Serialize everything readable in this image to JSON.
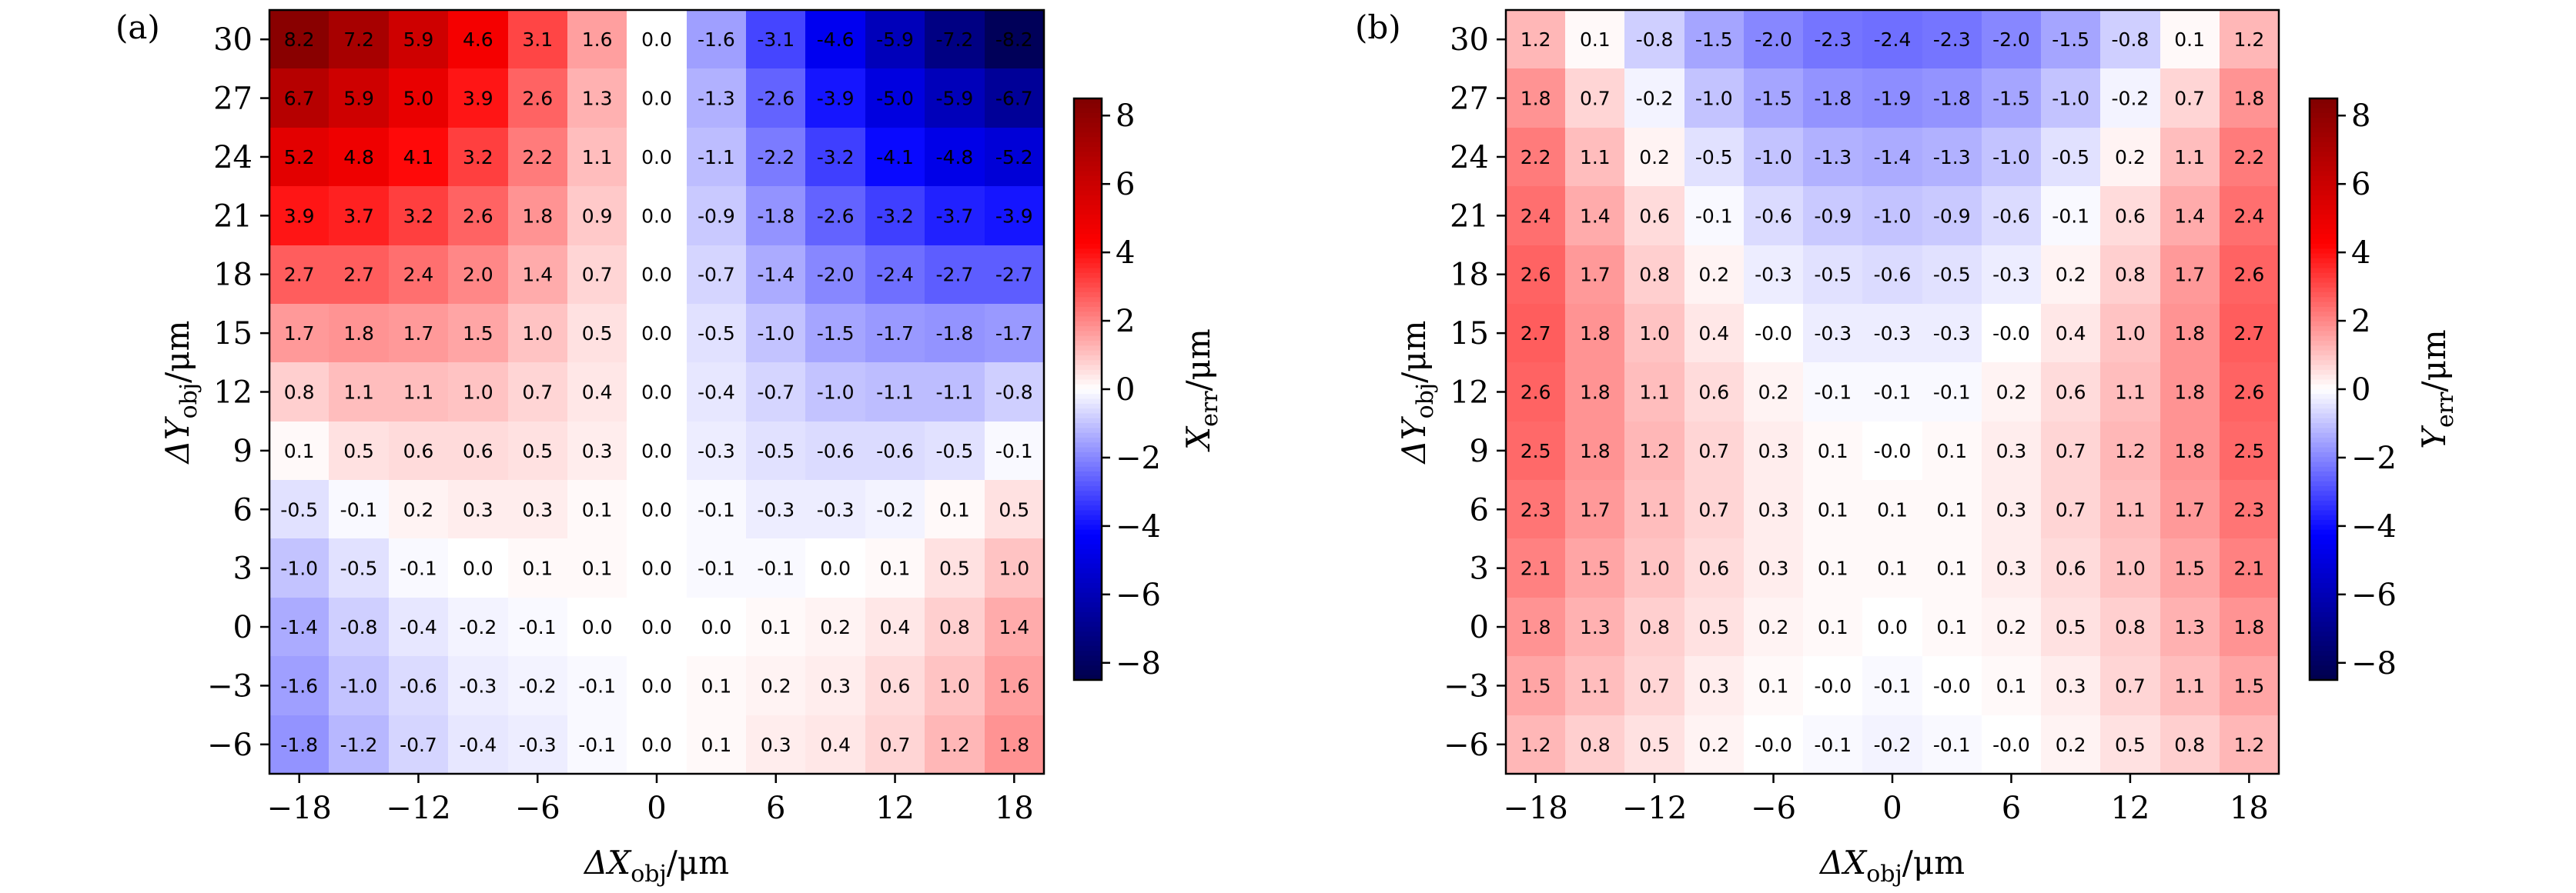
{
  "chart_data": [
    {
      "type": "heatmap",
      "panel_label": "(a)",
      "xlabel_text": "ΔX",
      "xlabel_sub": "obj",
      "xlabel_unit": "/μm",
      "ylabel_text": "ΔY",
      "ylabel_sub": "obj",
      "ylabel_unit": "/μm",
      "colorbar_label_text": "X",
      "colorbar_label_sub": "err",
      "colorbar_label_unit": "/μm",
      "x_values": [
        -18,
        -15,
        -12,
        -9,
        -6,
        -3,
        0,
        3,
        6,
        9,
        12,
        15,
        18
      ],
      "y_values": [
        30,
        27,
        24,
        21,
        18,
        15,
        12,
        9,
        6,
        3,
        0,
        -3,
        -6
      ],
      "xticks": [
        -18,
        -12,
        -6,
        0,
        6,
        12,
        18
      ],
      "xtick_labels": [
        "−18",
        "−12",
        "−6",
        "0",
        "6",
        "12",
        "18"
      ],
      "yticks": [
        30,
        27,
        24,
        21,
        18,
        15,
        12,
        9,
        6,
        3,
        0,
        -3,
        -6
      ],
      "ytick_labels": [
        "30",
        "27",
        "24",
        "21",
        "18",
        "15",
        "12",
        "9",
        "6",
        "3",
        "0",
        "−3",
        "−6"
      ],
      "colorbar_ticks": [
        8,
        6,
        4,
        2,
        0,
        -2,
        -4,
        -6,
        -8
      ],
      "colorbar_tick_labels": [
        "8",
        "6",
        "4",
        "2",
        "0",
        "−2",
        "−4",
        "−6",
        "−8"
      ],
      "vmin": -8.5,
      "vmax": 8.5,
      "colormap": "seismic",
      "values": [
        [
          8.2,
          7.2,
          5.9,
          4.6,
          3.1,
          1.6,
          0.0,
          -1.6,
          -3.1,
          -4.6,
          -5.9,
          -7.2,
          -8.2
        ],
        [
          6.7,
          5.9,
          5.0,
          3.9,
          2.6,
          1.3,
          0.0,
          -1.3,
          -2.6,
          -3.9,
          -5.0,
          -5.9,
          -6.7
        ],
        [
          5.2,
          4.8,
          4.1,
          3.2,
          2.2,
          1.1,
          0.0,
          -1.1,
          -2.2,
          -3.2,
          -4.1,
          -4.8,
          -5.2
        ],
        [
          3.9,
          3.7,
          3.2,
          2.6,
          1.8,
          0.9,
          0.0,
          -0.9,
          -1.8,
          -2.6,
          -3.2,
          -3.7,
          -3.9
        ],
        [
          2.7,
          2.7,
          2.4,
          2.0,
          1.4,
          0.7,
          0.0,
          -0.7,
          -1.4,
          -2.0,
          -2.4,
          -2.7,
          -2.7
        ],
        [
          1.7,
          1.8,
          1.7,
          1.5,
          1.0,
          0.5,
          0.0,
          -0.5,
          -1.0,
          -1.5,
          -1.7,
          -1.8,
          -1.7
        ],
        [
          0.8,
          1.1,
          1.1,
          1.0,
          0.7,
          0.4,
          0.0,
          -0.4,
          -0.7,
          -1.0,
          -1.1,
          -1.1,
          -0.8
        ],
        [
          0.1,
          0.5,
          0.6,
          0.6,
          0.5,
          0.3,
          0.0,
          -0.3,
          -0.5,
          -0.6,
          -0.6,
          -0.5,
          -0.1
        ],
        [
          -0.5,
          -0.1,
          0.2,
          0.3,
          0.3,
          0.1,
          0.0,
          -0.1,
          -0.3,
          -0.3,
          -0.2,
          0.1,
          0.5
        ],
        [
          -1.0,
          -0.5,
          -0.1,
          0.0,
          0.1,
          0.1,
          0.0,
          -0.1,
          -0.1,
          0.0,
          0.1,
          0.5,
          1.0
        ],
        [
          -1.4,
          -0.8,
          -0.4,
          -0.2,
          -0.1,
          0.0,
          0.0,
          0.0,
          0.1,
          0.2,
          0.4,
          0.8,
          1.4
        ],
        [
          -1.6,
          -1.0,
          -0.6,
          -0.3,
          -0.2,
          -0.1,
          0.0,
          0.1,
          0.2,
          0.3,
          0.6,
          1.0,
          1.6
        ],
        [
          -1.8,
          -1.2,
          -0.7,
          -0.4,
          -0.3,
          -0.1,
          0.0,
          0.1,
          0.3,
          0.4,
          0.7,
          1.2,
          1.8
        ]
      ],
      "cell_labels": [
        [
          "8.2",
          "7.2",
          "5.9",
          "4.6",
          "3.1",
          "1.6",
          "0.0",
          "-1.6",
          "-3.1",
          "-4.6",
          "-5.9",
          "-7.2",
          "-8.2"
        ],
        [
          "6.7",
          "5.9",
          "5.0",
          "3.9",
          "2.6",
          "1.3",
          "0.0",
          "-1.3",
          "-2.6",
          "-3.9",
          "-5.0",
          "-5.9",
          "-6.7"
        ],
        [
          "5.2",
          "4.8",
          "4.1",
          "3.2",
          "2.2",
          "1.1",
          "0.0",
          "-1.1",
          "-2.2",
          "-3.2",
          "-4.1",
          "-4.8",
          "-5.2"
        ],
        [
          "3.9",
          "3.7",
          "3.2",
          "2.6",
          "1.8",
          "0.9",
          "0.0",
          "-0.9",
          "-1.8",
          "-2.6",
          "-3.2",
          "-3.7",
          "-3.9"
        ],
        [
          "2.7",
          "2.7",
          "2.4",
          "2.0",
          "1.4",
          "0.7",
          "0.0",
          "-0.7",
          "-1.4",
          "-2.0",
          "-2.4",
          "-2.7",
          "-2.7"
        ],
        [
          "1.7",
          "1.8",
          "1.7",
          "1.5",
          "1.0",
          "0.5",
          "0.0",
          "-0.5",
          "-1.0",
          "-1.5",
          "-1.7",
          "-1.8",
          "-1.7"
        ],
        [
          "0.8",
          "1.1",
          "1.1",
          "1.0",
          "0.7",
          "0.4",
          "0.0",
          "-0.4",
          "-0.7",
          "-1.0",
          "-1.1",
          "-1.1",
          "-0.8"
        ],
        [
          "0.1",
          "0.5",
          "0.6",
          "0.6",
          "0.5",
          "0.3",
          "0.0",
          "-0.3",
          "-0.5",
          "-0.6",
          "-0.6",
          "-0.5",
          "-0.1"
        ],
        [
          "-0.5",
          "-0.1",
          "0.2",
          "0.3",
          "0.3",
          "0.1",
          "0.0",
          "-0.1",
          "-0.3",
          "-0.3",
          "-0.2",
          "0.1",
          "0.5"
        ],
        [
          "-1.0",
          "-0.5",
          "-0.1",
          "0.0",
          "0.1",
          "0.1",
          "0.0",
          "-0.1",
          "-0.1",
          "0.0",
          "0.1",
          "0.5",
          "1.0"
        ],
        [
          "-1.4",
          "-0.8",
          "-0.4",
          "-0.2",
          "-0.1",
          "0.0",
          "0.0",
          "0.0",
          "0.1",
          "0.2",
          "0.4",
          "0.8",
          "1.4"
        ],
        [
          "-1.6",
          "-1.0",
          "-0.6",
          "-0.3",
          "-0.2",
          "-0.1",
          "0.0",
          "0.1",
          "0.2",
          "0.3",
          "0.6",
          "1.0",
          "1.6"
        ],
        [
          "-1.8",
          "-1.2",
          "-0.7",
          "-0.4",
          "-0.3",
          "-0.1",
          "0.0",
          "0.1",
          "0.3",
          "0.4",
          "0.7",
          "1.2",
          "1.8"
        ]
      ]
    },
    {
      "type": "heatmap",
      "panel_label": "(b)",
      "xlabel_text": "ΔX",
      "xlabel_sub": "obj",
      "xlabel_unit": "/μm",
      "ylabel_text": "ΔY",
      "ylabel_sub": "obj",
      "ylabel_unit": "/μm",
      "colorbar_label_text": "Y",
      "colorbar_label_sub": "err",
      "colorbar_label_unit": "/μm",
      "x_values": [
        -18,
        -15,
        -12,
        -9,
        -6,
        -3,
        0,
        3,
        6,
        9,
        12,
        15,
        18
      ],
      "y_values": [
        30,
        27,
        24,
        21,
        18,
        15,
        12,
        9,
        6,
        3,
        0,
        -3,
        -6
      ],
      "xticks": [
        -18,
        -12,
        -6,
        0,
        6,
        12,
        18
      ],
      "xtick_labels": [
        "−18",
        "−12",
        "−6",
        "0",
        "6",
        "12",
        "18"
      ],
      "yticks": [
        30,
        27,
        24,
        21,
        18,
        15,
        12,
        9,
        6,
        3,
        0,
        -3,
        -6
      ],
      "ytick_labels": [
        "30",
        "27",
        "24",
        "21",
        "18",
        "15",
        "12",
        "9",
        "6",
        "3",
        "0",
        "−3",
        "−6"
      ],
      "colorbar_ticks": [
        8,
        6,
        4,
        2,
        0,
        -2,
        -4,
        -6,
        -8
      ],
      "colorbar_tick_labels": [
        "8",
        "6",
        "4",
        "2",
        "0",
        "−2",
        "−4",
        "−6",
        "−8"
      ],
      "vmin": -8.5,
      "vmax": 8.5,
      "colormap": "seismic",
      "values": [
        [
          1.2,
          0.1,
          -0.8,
          -1.5,
          -2.0,
          -2.3,
          -2.4,
          -2.3,
          -2.0,
          -1.5,
          -0.8,
          0.1,
          1.2
        ],
        [
          1.8,
          0.7,
          -0.2,
          -1.0,
          -1.5,
          -1.8,
          -1.9,
          -1.8,
          -1.5,
          -1.0,
          -0.2,
          0.7,
          1.8
        ],
        [
          2.2,
          1.1,
          0.2,
          -0.5,
          -1.0,
          -1.3,
          -1.4,
          -1.3,
          -1.0,
          -0.5,
          0.2,
          1.1,
          2.2
        ],
        [
          2.4,
          1.4,
          0.6,
          -0.1,
          -0.6,
          -0.9,
          -1.0,
          -0.9,
          -0.6,
          -0.1,
          0.6,
          1.4,
          2.4
        ],
        [
          2.6,
          1.7,
          0.8,
          0.2,
          -0.3,
          -0.5,
          -0.6,
          -0.5,
          -0.3,
          0.2,
          0.8,
          1.7,
          2.6
        ],
        [
          2.7,
          1.8,
          1.0,
          0.4,
          -0.0,
          -0.3,
          -0.3,
          -0.3,
          -0.0,
          0.4,
          1.0,
          1.8,
          2.7
        ],
        [
          2.6,
          1.8,
          1.1,
          0.6,
          0.2,
          -0.1,
          -0.1,
          -0.1,
          0.2,
          0.6,
          1.1,
          1.8,
          2.6
        ],
        [
          2.5,
          1.8,
          1.2,
          0.7,
          0.3,
          0.1,
          -0.0,
          0.1,
          0.3,
          0.7,
          1.2,
          1.8,
          2.5
        ],
        [
          2.3,
          1.7,
          1.1,
          0.7,
          0.3,
          0.1,
          0.1,
          0.1,
          0.3,
          0.7,
          1.1,
          1.7,
          2.3
        ],
        [
          2.1,
          1.5,
          1.0,
          0.6,
          0.3,
          0.1,
          0.1,
          0.1,
          0.3,
          0.6,
          1.0,
          1.5,
          2.1
        ],
        [
          1.8,
          1.3,
          0.8,
          0.5,
          0.2,
          0.1,
          0.0,
          0.1,
          0.2,
          0.5,
          0.8,
          1.3,
          1.8
        ],
        [
          1.5,
          1.1,
          0.7,
          0.3,
          0.1,
          -0.0,
          -0.1,
          -0.0,
          0.1,
          0.3,
          0.7,
          1.1,
          1.5
        ],
        [
          1.2,
          0.8,
          0.5,
          0.2,
          -0.0,
          -0.1,
          -0.2,
          -0.1,
          -0.0,
          0.2,
          0.5,
          0.8,
          1.2
        ]
      ],
      "cell_labels": [
        [
          "1.2",
          "0.1",
          "-0.8",
          "-1.5",
          "-2.0",
          "-2.3",
          "-2.4",
          "-2.3",
          "-2.0",
          "-1.5",
          "-0.8",
          "0.1",
          "1.2"
        ],
        [
          "1.8",
          "0.7",
          "-0.2",
          "-1.0",
          "-1.5",
          "-1.8",
          "-1.9",
          "-1.8",
          "-1.5",
          "-1.0",
          "-0.2",
          "0.7",
          "1.8"
        ],
        [
          "2.2",
          "1.1",
          "0.2",
          "-0.5",
          "-1.0",
          "-1.3",
          "-1.4",
          "-1.3",
          "-1.0",
          "-0.5",
          "0.2",
          "1.1",
          "2.2"
        ],
        [
          "2.4",
          "1.4",
          "0.6",
          "-0.1",
          "-0.6",
          "-0.9",
          "-1.0",
          "-0.9",
          "-0.6",
          "-0.1",
          "0.6",
          "1.4",
          "2.4"
        ],
        [
          "2.6",
          "1.7",
          "0.8",
          "0.2",
          "-0.3",
          "-0.5",
          "-0.6",
          "-0.5",
          "-0.3",
          "0.2",
          "0.8",
          "1.7",
          "2.6"
        ],
        [
          "2.7",
          "1.8",
          "1.0",
          "0.4",
          "-0.0",
          "-0.3",
          "-0.3",
          "-0.3",
          "-0.0",
          "0.4",
          "1.0",
          "1.8",
          "2.7"
        ],
        [
          "2.6",
          "1.8",
          "1.1",
          "0.6",
          "0.2",
          "-0.1",
          "-0.1",
          "-0.1",
          "0.2",
          "0.6",
          "1.1",
          "1.8",
          "2.6"
        ],
        [
          "2.5",
          "1.8",
          "1.2",
          "0.7",
          "0.3",
          "0.1",
          "-0.0",
          "0.1",
          "0.3",
          "0.7",
          "1.2",
          "1.8",
          "2.5"
        ],
        [
          "2.3",
          "1.7",
          "1.1",
          "0.7",
          "0.3",
          "0.1",
          "0.1",
          "0.1",
          "0.3",
          "0.7",
          "1.1",
          "1.7",
          "2.3"
        ],
        [
          "2.1",
          "1.5",
          "1.0",
          "0.6",
          "0.3",
          "0.1",
          "0.1",
          "0.1",
          "0.3",
          "0.6",
          "1.0",
          "1.5",
          "2.1"
        ],
        [
          "1.8",
          "1.3",
          "0.8",
          "0.5",
          "0.2",
          "0.1",
          "0.0",
          "0.1",
          "0.2",
          "0.5",
          "0.8",
          "1.3",
          "1.8"
        ],
        [
          "1.5",
          "1.1",
          "0.7",
          "0.3",
          "0.1",
          "-0.0",
          "-0.1",
          "-0.0",
          "0.1",
          "0.3",
          "0.7",
          "1.1",
          "1.5"
        ],
        [
          "1.2",
          "0.8",
          "0.5",
          "0.2",
          "-0.0",
          "-0.1",
          "-0.2",
          "-0.1",
          "-0.0",
          "0.2",
          "0.5",
          "0.8",
          "1.2"
        ]
      ]
    }
  ]
}
